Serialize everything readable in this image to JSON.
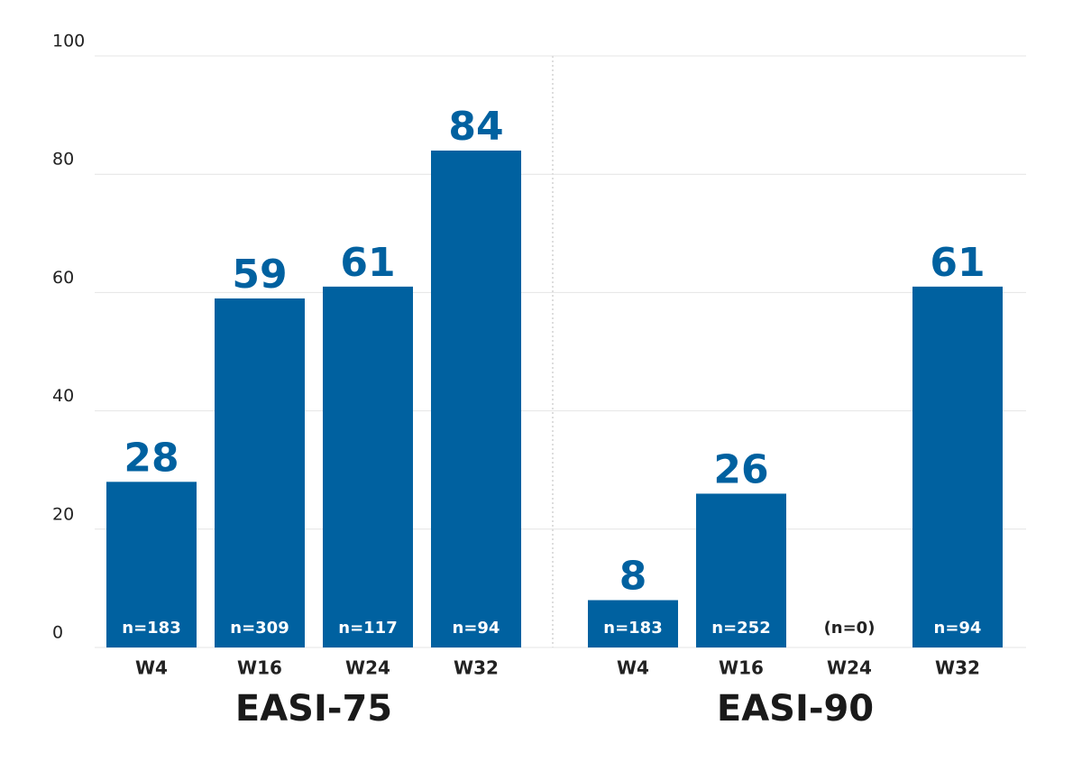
{
  "chart_data": {
    "type": "bar",
    "color": "#0061a0",
    "ylim": [
      0,
      100
    ],
    "yticks": [
      0,
      20,
      40,
      60,
      80,
      100
    ],
    "grid": true,
    "groups": [
      {
        "title": "EASI-75",
        "categories": [
          "W4",
          "W16",
          "W24",
          "W32"
        ],
        "values": [
          28,
          59,
          61,
          84
        ],
        "annotations": [
          "n=183",
          "n=309",
          "n=117",
          "n=94"
        ]
      },
      {
        "title": "EASI-90",
        "categories": [
          "W4",
          "W16",
          "W24",
          "W32"
        ],
        "values": [
          8,
          26,
          null,
          61
        ],
        "annotations": [
          "n=183",
          "n=252",
          "(n=0)",
          "n=94"
        ]
      }
    ]
  }
}
